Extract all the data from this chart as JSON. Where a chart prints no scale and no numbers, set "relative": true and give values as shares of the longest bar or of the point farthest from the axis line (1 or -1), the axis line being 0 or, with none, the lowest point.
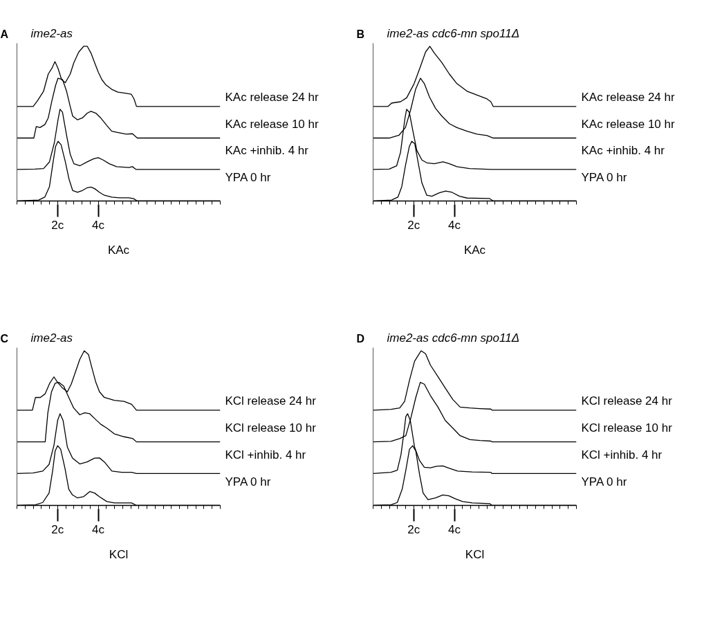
{
  "chart_data": [
    {
      "type": "line",
      "relative": true,
      "title": "ime2-as",
      "annotations": [
        "A"
      ],
      "xlabel": "KAc",
      "xlim": [
        0,
        10
      ],
      "xticks": [
        {
          "value": 0,
          "label": null
        },
        {
          "value": 0.4,
          "label": null
        },
        {
          "value": 0.8,
          "label": null
        },
        {
          "value": 1.2,
          "label": null
        },
        {
          "value": 1.6,
          "label": null
        },
        {
          "value": 2,
          "label": "2c"
        },
        {
          "value": 2.4,
          "label": null
        },
        {
          "value": 2.8,
          "label": null
        },
        {
          "value": 3.2,
          "label": null
        },
        {
          "value": 3.6,
          "label": null
        },
        {
          "value": 4,
          "label": "4c"
        },
        {
          "value": 4.4,
          "label": null
        },
        {
          "value": 4.8,
          "label": null
        },
        {
          "value": 5.2,
          "label": null
        },
        {
          "value": 5.6,
          "label": null
        },
        {
          "value": 6,
          "label": null
        },
        {
          "value": 6.4,
          "label": null
        },
        {
          "value": 6.8,
          "label": null
        },
        {
          "value": 7.2,
          "label": null
        },
        {
          "value": 7.6,
          "label": null
        },
        {
          "value": 8,
          "label": null
        },
        {
          "value": 8.4,
          "label": null
        },
        {
          "value": 8.8,
          "label": null
        },
        {
          "value": 9.2,
          "label": null
        },
        {
          "value": 9.6,
          "label": null
        },
        {
          "value": 10,
          "label": null
        }
      ],
      "series": [
        {
          "name": "YPA 0 hr",
          "color": "#000000",
          "x": [
            0,
            1.07,
            1.37,
            1.6,
            1.78,
            1.9,
            2.02,
            2.17,
            2.38,
            2.56,
            2.74,
            2.98,
            3.22,
            3.46,
            3.64,
            3.82,
            4.06,
            4.3,
            4.66,
            5.02,
            5.5,
            5.74,
            5.92,
            10
          ],
          "values": [
            0,
            0.006,
            0.025,
            0.093,
            0.253,
            0.352,
            0.386,
            0.364,
            0.253,
            0.142,
            0.068,
            0.056,
            0.068,
            0.086,
            0.09,
            0.08,
            0.056,
            0.037,
            0.025,
            0.021,
            0.021,
            0.015,
            0,
            0
          ]
        },
        {
          "name": "KAc +inhib. 4 hr",
          "color": "#000000",
          "x": [
            0,
            0.89,
            1.31,
            1.6,
            1.84,
            2.02,
            2.12,
            2.24,
            2.44,
            2.62,
            2.8,
            3.1,
            3.46,
            3.76,
            4,
            4.24,
            4.54,
            4.9,
            5.5,
            5.68,
            5.86,
            10
          ],
          "values": [
            0.204,
            0.206,
            0.21,
            0.253,
            0.377,
            0.525,
            0.593,
            0.574,
            0.426,
            0.302,
            0.241,
            0.228,
            0.253,
            0.272,
            0.28,
            0.265,
            0.241,
            0.222,
            0.216,
            0.222,
            0.204,
            0.204
          ]
        },
        {
          "name": "KAc release 10 hr",
          "color": "#000000",
          "x": [
            0,
            0.83,
            0.95,
            1.13,
            1.37,
            1.54,
            1.72,
            1.9,
            2.02,
            2.24,
            2.44,
            2.62,
            2.74,
            2.98,
            3.22,
            3.46,
            3.64,
            3.88,
            4.12,
            4.42,
            4.66,
            5.02,
            5.38,
            5.68,
            5.92,
            10
          ],
          "values": [
            0.407,
            0.407,
            0.481,
            0.475,
            0.494,
            0.537,
            0.648,
            0.747,
            0.794,
            0.786,
            0.71,
            0.611,
            0.549,
            0.525,
            0.537,
            0.568,
            0.58,
            0.568,
            0.537,
            0.488,
            0.451,
            0.441,
            0.432,
            0.435,
            0.407,
            0.407
          ]
        },
        {
          "name": "KAc release 24 hr",
          "color": "#000000",
          "x": [
            0,
            0.8,
            1.01,
            1.31,
            1.54,
            1.72,
            1.87,
            2.02,
            2.2,
            2.38,
            2.62,
            2.8,
            3.04,
            3.28,
            3.46,
            3.64,
            3.82,
            4,
            4.18,
            4.36,
            4.66,
            4.96,
            5.26,
            5.62,
            5.76,
            5.88,
            10
          ],
          "values": [
            0.611,
            0.611,
            0.648,
            0.71,
            0.821,
            0.858,
            0.901,
            0.858,
            0.784,
            0.765,
            0.821,
            0.895,
            0.963,
            1,
            1,
            0.957,
            0.895,
            0.833,
            0.784,
            0.753,
            0.722,
            0.704,
            0.698,
            0.691,
            0.66,
            0.611,
            0.611
          ]
        }
      ]
    },
    {
      "type": "line",
      "relative": true,
      "title": "ime2-as cdc6-mn spo11Δ",
      "annotations": [
        "B"
      ],
      "xlabel": "KAc",
      "xlim": [
        0,
        10
      ],
      "xticks": [
        {
          "value": 0,
          "label": null
        },
        {
          "value": 0.4,
          "label": null
        },
        {
          "value": 0.8,
          "label": null
        },
        {
          "value": 1.2,
          "label": null
        },
        {
          "value": 1.6,
          "label": null
        },
        {
          "value": 2,
          "label": "2c"
        },
        {
          "value": 2.4,
          "label": null
        },
        {
          "value": 2.8,
          "label": null
        },
        {
          "value": 3.2,
          "label": null
        },
        {
          "value": 3.6,
          "label": null
        },
        {
          "value": 4,
          "label": "4c"
        },
        {
          "value": 4.4,
          "label": null
        },
        {
          "value": 4.8,
          "label": null
        },
        {
          "value": 5.2,
          "label": null
        },
        {
          "value": 5.6,
          "label": null
        },
        {
          "value": 6,
          "label": null
        },
        {
          "value": 6.4,
          "label": null
        },
        {
          "value": 6.8,
          "label": null
        },
        {
          "value": 7.2,
          "label": null
        },
        {
          "value": 7.6,
          "label": null
        },
        {
          "value": 8,
          "label": null
        },
        {
          "value": 8.4,
          "label": null
        },
        {
          "value": 8.8,
          "label": null
        },
        {
          "value": 9.2,
          "label": null
        },
        {
          "value": 9.6,
          "label": null
        },
        {
          "value": 10,
          "label": null
        }
      ],
      "series": [
        {
          "name": "YPA 0 hr",
          "color": "#000000",
          "x": [
            0,
            0.91,
            1.22,
            1.41,
            1.59,
            1.78,
            1.9,
            2.05,
            2.21,
            2.4,
            2.64,
            2.89,
            3.26,
            3.57,
            3.88,
            4.25,
            4.62,
            5.73,
            5.91,
            10
          ],
          "values": [
            0,
            0.006,
            0.025,
            0.093,
            0.228,
            0.352,
            0.386,
            0.37,
            0.253,
            0.117,
            0.037,
            0.031,
            0.053,
            0.064,
            0.056,
            0.031,
            0.019,
            0.016,
            0,
            0
          ]
        },
        {
          "name": "KAc +inhib. 4 hr",
          "color": "#000000",
          "x": [
            0,
            0.79,
            1.16,
            1.35,
            1.47,
            1.57,
            1.65,
            1.78,
            1.96,
            2.15,
            2.4,
            2.64,
            3.01,
            3.44,
            3.75,
            4.12,
            4.74,
            5.85,
            10
          ],
          "values": [
            0.204,
            0.206,
            0.228,
            0.315,
            0.438,
            0.537,
            0.593,
            0.574,
            0.451,
            0.327,
            0.265,
            0.247,
            0.241,
            0.253,
            0.241,
            0.222,
            0.21,
            0.204,
            0.204
          ]
        },
        {
          "name": "KAc release 10 hr",
          "color": "#000000",
          "x": [
            0,
            0.79,
            1.28,
            1.59,
            1.84,
            2.09,
            2.33,
            2.52,
            2.77,
            3.07,
            3.38,
            3.75,
            4.12,
            4.62,
            5.11,
            5.6,
            5.91,
            10
          ],
          "values": [
            0.407,
            0.407,
            0.426,
            0.475,
            0.586,
            0.722,
            0.794,
            0.759,
            0.673,
            0.599,
            0.549,
            0.5,
            0.475,
            0.451,
            0.432,
            0.423,
            0.407,
            0.407
          ]
        },
        {
          "name": "KAc release 24 hr",
          "color": "#000000",
          "x": [
            0,
            0.73,
            0.91,
            1.35,
            1.65,
            2.02,
            2.33,
            2.58,
            2.79,
            3.01,
            3.38,
            3.75,
            4.12,
            4.62,
            5.11,
            5.6,
            5.79,
            5.91,
            10
          ],
          "values": [
            0.611,
            0.611,
            0.633,
            0.642,
            0.667,
            0.759,
            0.87,
            0.963,
            1,
            0.957,
            0.895,
            0.821,
            0.759,
            0.71,
            0.685,
            0.66,
            0.642,
            0.611,
            0.611
          ]
        }
      ]
    },
    {
      "type": "line",
      "relative": true,
      "title": "ime2-as",
      "annotations": [
        "C"
      ],
      "xlabel": "KCl",
      "xlim": [
        0,
        10
      ],
      "xticks": [
        {
          "value": 0,
          "label": null
        },
        {
          "value": 0.4,
          "label": null
        },
        {
          "value": 0.8,
          "label": null
        },
        {
          "value": 1.2,
          "label": null
        },
        {
          "value": 1.6,
          "label": null
        },
        {
          "value": 2,
          "label": "2c"
        },
        {
          "value": 2.4,
          "label": null
        },
        {
          "value": 2.8,
          "label": null
        },
        {
          "value": 3.2,
          "label": null
        },
        {
          "value": 3.6,
          "label": null
        },
        {
          "value": 4,
          "label": "4c"
        },
        {
          "value": 4.4,
          "label": null
        },
        {
          "value": 4.8,
          "label": null
        },
        {
          "value": 5.2,
          "label": null
        },
        {
          "value": 5.6,
          "label": null
        },
        {
          "value": 6,
          "label": null
        },
        {
          "value": 6.4,
          "label": null
        },
        {
          "value": 6.8,
          "label": null
        },
        {
          "value": 7.2,
          "label": null
        },
        {
          "value": 7.6,
          "label": null
        },
        {
          "value": 8,
          "label": null
        },
        {
          "value": 8.4,
          "label": null
        },
        {
          "value": 8.8,
          "label": null
        },
        {
          "value": 9.2,
          "label": null
        },
        {
          "value": 9.6,
          "label": null
        },
        {
          "value": 10,
          "label": null
        }
      ],
      "series": [
        {
          "name": "YPA 0 hr",
          "color": "#000000",
          "x": [
            0,
            0.91,
            1.27,
            1.58,
            1.76,
            1.88,
            2,
            2.15,
            2.36,
            2.55,
            2.73,
            2.97,
            3.27,
            3.58,
            3.82,
            4.06,
            4.42,
            4.79,
            5.64,
            5.88,
            10
          ],
          "values": [
            0,
            0.004,
            0.019,
            0.08,
            0.228,
            0.352,
            0.386,
            0.364,
            0.241,
            0.105,
            0.068,
            0.049,
            0.056,
            0.09,
            0.08,
            0.056,
            0.025,
            0.016,
            0.016,
            0,
            0
          ]
        },
        {
          "name": "KCl +inhib. 4 hr",
          "color": "#000000",
          "x": [
            0,
            0.79,
            1.27,
            1.58,
            1.82,
            2,
            2.12,
            2.27,
            2.48,
            2.73,
            3.09,
            3.45,
            3.82,
            4.06,
            4.3,
            4.67,
            5.15,
            5.64,
            5.88,
            10
          ],
          "values": [
            0.206,
            0.21,
            0.222,
            0.265,
            0.389,
            0.549,
            0.593,
            0.549,
            0.377,
            0.306,
            0.268,
            0.281,
            0.306,
            0.307,
            0.281,
            0.222,
            0.214,
            0.214,
            0.206,
            0.206
          ]
        },
        {
          "name": "KCl release 10 hr",
          "color": "#000000",
          "x": [
            0,
            1.39,
            1.52,
            1.7,
            1.88,
            2.06,
            2.3,
            2.55,
            2.79,
            3.09,
            3.33,
            3.58,
            3.82,
            4.12,
            4.42,
            4.79,
            5.27,
            5.7,
            5.88,
            10
          ],
          "values": [
            0.411,
            0.411,
            0.599,
            0.735,
            0.79,
            0.796,
            0.772,
            0.698,
            0.63,
            0.586,
            0.599,
            0.593,
            0.562,
            0.525,
            0.5,
            0.463,
            0.444,
            0.432,
            0.411,
            0.411
          ]
        },
        {
          "name": "KCl release 24 hr",
          "color": "#000000",
          "x": [
            0,
            0.76,
            0.91,
            1.15,
            1.39,
            1.61,
            1.82,
            2,
            2.24,
            2.48,
            2.67,
            2.85,
            3.09,
            3.31,
            3.52,
            3.7,
            3.88,
            4.06,
            4.3,
            4.79,
            5.27,
            5.64,
            5.88,
            10
          ],
          "values": [
            0.616,
            0.616,
            0.698,
            0.698,
            0.722,
            0.79,
            0.831,
            0.796,
            0.759,
            0.735,
            0.784,
            0.852,
            0.944,
            1,
            0.975,
            0.883,
            0.796,
            0.735,
            0.698,
            0.679,
            0.673,
            0.654,
            0.616,
            0.616
          ]
        }
      ]
    },
    {
      "type": "line",
      "relative": true,
      "title": "ime2-as cdc6-mn spo11Δ",
      "annotations": [
        "D"
      ],
      "xlabel": "KCl",
      "xlim": [
        0,
        10
      ],
      "xticks": [
        {
          "value": 0,
          "label": null
        },
        {
          "value": 0.4,
          "label": null
        },
        {
          "value": 0.8,
          "label": null
        },
        {
          "value": 1.2,
          "label": null
        },
        {
          "value": 1.6,
          "label": null
        },
        {
          "value": 2,
          "label": "2c"
        },
        {
          "value": 2.4,
          "label": null
        },
        {
          "value": 2.8,
          "label": null
        },
        {
          "value": 3.2,
          "label": null
        },
        {
          "value": 3.6,
          "label": null
        },
        {
          "value": 4,
          "label": "4c"
        },
        {
          "value": 4.4,
          "label": null
        },
        {
          "value": 4.8,
          "label": null
        },
        {
          "value": 5.2,
          "label": null
        },
        {
          "value": 5.6,
          "label": null
        },
        {
          "value": 6,
          "label": null
        },
        {
          "value": 6.4,
          "label": null
        },
        {
          "value": 6.8,
          "label": null
        },
        {
          "value": 7.2,
          "label": null
        },
        {
          "value": 7.6,
          "label": null
        },
        {
          "value": 8,
          "label": null
        },
        {
          "value": 8.4,
          "label": null
        },
        {
          "value": 8.8,
          "label": null
        },
        {
          "value": 9.2,
          "label": null
        },
        {
          "value": 9.6,
          "label": null
        },
        {
          "value": 10,
          "label": null
        }
      ],
      "series": [
        {
          "name": "YPA 0 hr",
          "color": "#000000",
          "x": [
            0,
            0.88,
            1.19,
            1.43,
            1.61,
            1.79,
            1.95,
            2.1,
            2.28,
            2.46,
            2.7,
            3.07,
            3.43,
            3.73,
            4.04,
            4.4,
            4.88,
            5.73,
            5.85,
            10
          ],
          "values": [
            0,
            0.004,
            0.019,
            0.105,
            0.228,
            0.364,
            0.386,
            0.352,
            0.204,
            0.08,
            0.037,
            0.049,
            0.068,
            0.062,
            0.043,
            0.025,
            0.016,
            0.012,
            0,
            0
          ]
        },
        {
          "name": "KCl +inhib. 4 hr",
          "color": "#000000",
          "x": [
            0,
            0.88,
            1.19,
            1.37,
            1.52,
            1.61,
            1.7,
            1.83,
            2.04,
            2.28,
            2.52,
            2.82,
            3.13,
            3.43,
            3.73,
            4.16,
            4.88,
            5.79,
            5.85,
            10
          ],
          "values": [
            0.206,
            0.214,
            0.228,
            0.327,
            0.475,
            0.574,
            0.593,
            0.549,
            0.377,
            0.291,
            0.247,
            0.243,
            0.253,
            0.256,
            0.241,
            0.222,
            0.216,
            0.214,
            0.206,
            0.206
          ]
        },
        {
          "name": "KCl release 10 hr",
          "color": "#000000",
          "x": [
            0,
            0.88,
            1.31,
            1.61,
            1.85,
            2.1,
            2.32,
            2.52,
            2.82,
            3.19,
            3.55,
            3.92,
            4.28,
            4.76,
            5.25,
            5.79,
            5.85,
            10
          ],
          "values": [
            0.411,
            0.414,
            0.432,
            0.451,
            0.562,
            0.698,
            0.796,
            0.784,
            0.71,
            0.636,
            0.549,
            0.5,
            0.451,
            0.426,
            0.42,
            0.416,
            0.411,
            0.411
          ]
        },
        {
          "name": "KCl release 24 hr",
          "color": "#000000",
          "x": [
            0,
            0.88,
            1.31,
            1.55,
            1.79,
            2.04,
            2.36,
            2.58,
            2.82,
            3.19,
            3.55,
            3.92,
            4.28,
            4.76,
            5.25,
            5.79,
            5.85,
            10
          ],
          "values": [
            0.616,
            0.621,
            0.63,
            0.673,
            0.809,
            0.932,
            1,
            0.981,
            0.907,
            0.833,
            0.759,
            0.685,
            0.636,
            0.63,
            0.626,
            0.623,
            0.616,
            0.616
          ]
        }
      ]
    }
  ]
}
